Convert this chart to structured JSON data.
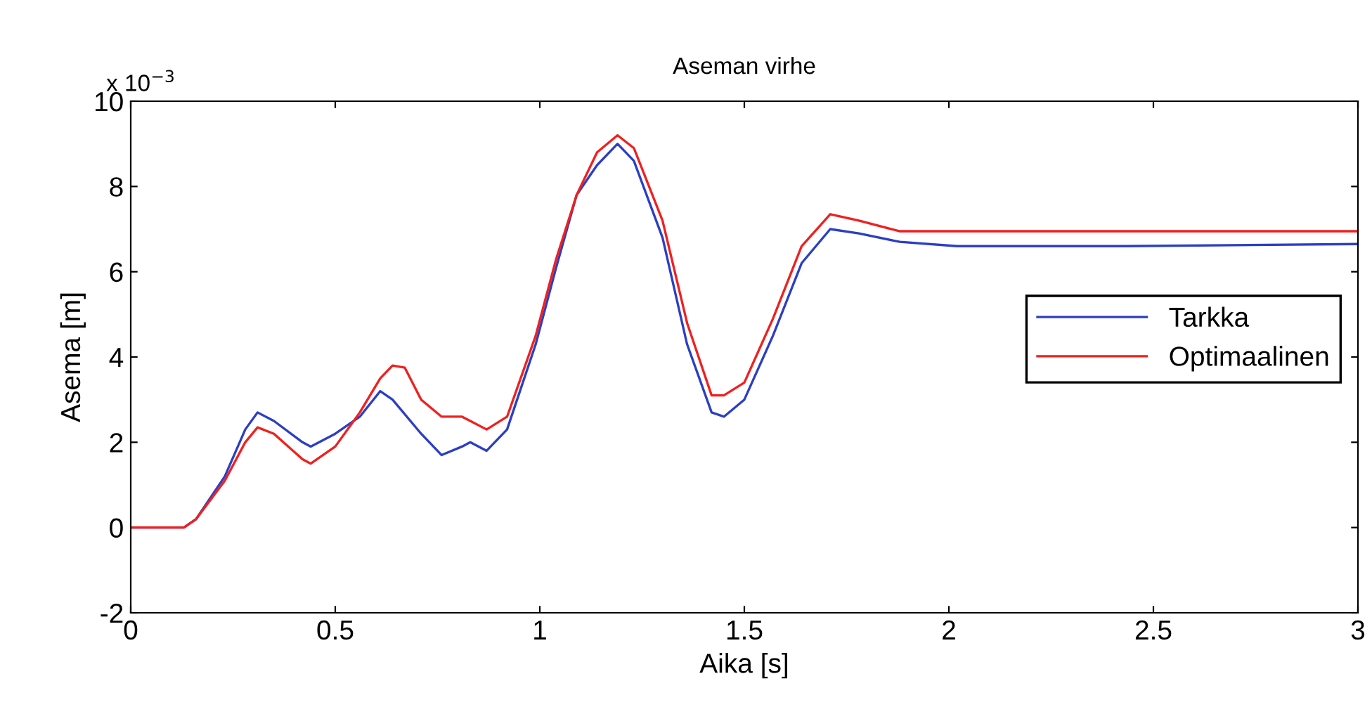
{
  "chart_data": {
    "type": "line",
    "title": "Aseman virhe",
    "xlabel": "Aika [s]",
    "ylabel": "Asema [m]",
    "annotations": [
      "x 10$^{−3}$"
    ],
    "xlim": [
      0,
      3
    ],
    "xticks": [
      0,
      0.5,
      1,
      1.5,
      2,
      2.5,
      3
    ],
    "ylim": [
      -2,
      10
    ],
    "yticks": [
      -2,
      0,
      2,
      4,
      6,
      8,
      10
    ],
    "grid": false,
    "legend": "right",
    "marker": "none",
    "line_style": "solid",
    "series": [
      {
        "name": "Tarkka",
        "color": "#2b3fc4",
        "x": [
          0,
          0.13,
          0.16,
          0.23,
          0.28,
          0.31,
          0.35,
          0.42,
          0.44,
          0.5,
          0.56,
          0.61,
          0.64,
          0.71,
          0.76,
          0.81,
          0.83,
          0.87,
          0.92,
          0.99,
          1.04,
          1.09,
          1.14,
          1.19,
          1.23,
          1.3,
          1.36,
          1.42,
          1.45,
          1.5,
          1.57,
          1.64,
          1.71,
          1.78,
          1.88,
          2.02,
          2.43,
          3.0
        ],
        "values": [
          0,
          0,
          0.2,
          1.2,
          2.3,
          2.7,
          2.5,
          2.0,
          1.9,
          2.2,
          2.6,
          3.2,
          3.0,
          2.2,
          1.7,
          1.9,
          2.0,
          1.8,
          2.3,
          4.3,
          6.1,
          7.8,
          8.5,
          9.0,
          8.6,
          6.8,
          4.3,
          2.7,
          2.6,
          3.0,
          4.5,
          6.2,
          7.0,
          6.9,
          6.7,
          6.6,
          6.6,
          6.65
        ]
      },
      {
        "name": "Optimaalinen",
        "color": "#f02020",
        "x": [
          0,
          0.13,
          0.16,
          0.23,
          0.28,
          0.31,
          0.35,
          0.42,
          0.44,
          0.5,
          0.56,
          0.61,
          0.64,
          0.67,
          0.71,
          0.76,
          0.81,
          0.83,
          0.87,
          0.92,
          0.99,
          1.04,
          1.09,
          1.14,
          1.19,
          1.23,
          1.3,
          1.36,
          1.42,
          1.45,
          1.5,
          1.57,
          1.64,
          1.71,
          1.78,
          1.88,
          2.02,
          3.0
        ],
        "values": [
          0,
          0,
          0.2,
          1.1,
          2.0,
          2.35,
          2.2,
          1.6,
          1.5,
          1.9,
          2.7,
          3.5,
          3.8,
          3.75,
          3.0,
          2.6,
          2.6,
          2.5,
          2.3,
          2.6,
          4.5,
          6.3,
          7.8,
          8.8,
          9.2,
          8.9,
          7.2,
          4.8,
          3.1,
          3.1,
          3.4,
          4.9,
          6.6,
          7.35,
          7.2,
          6.95,
          6.95,
          6.95
        ]
      }
    ]
  }
}
